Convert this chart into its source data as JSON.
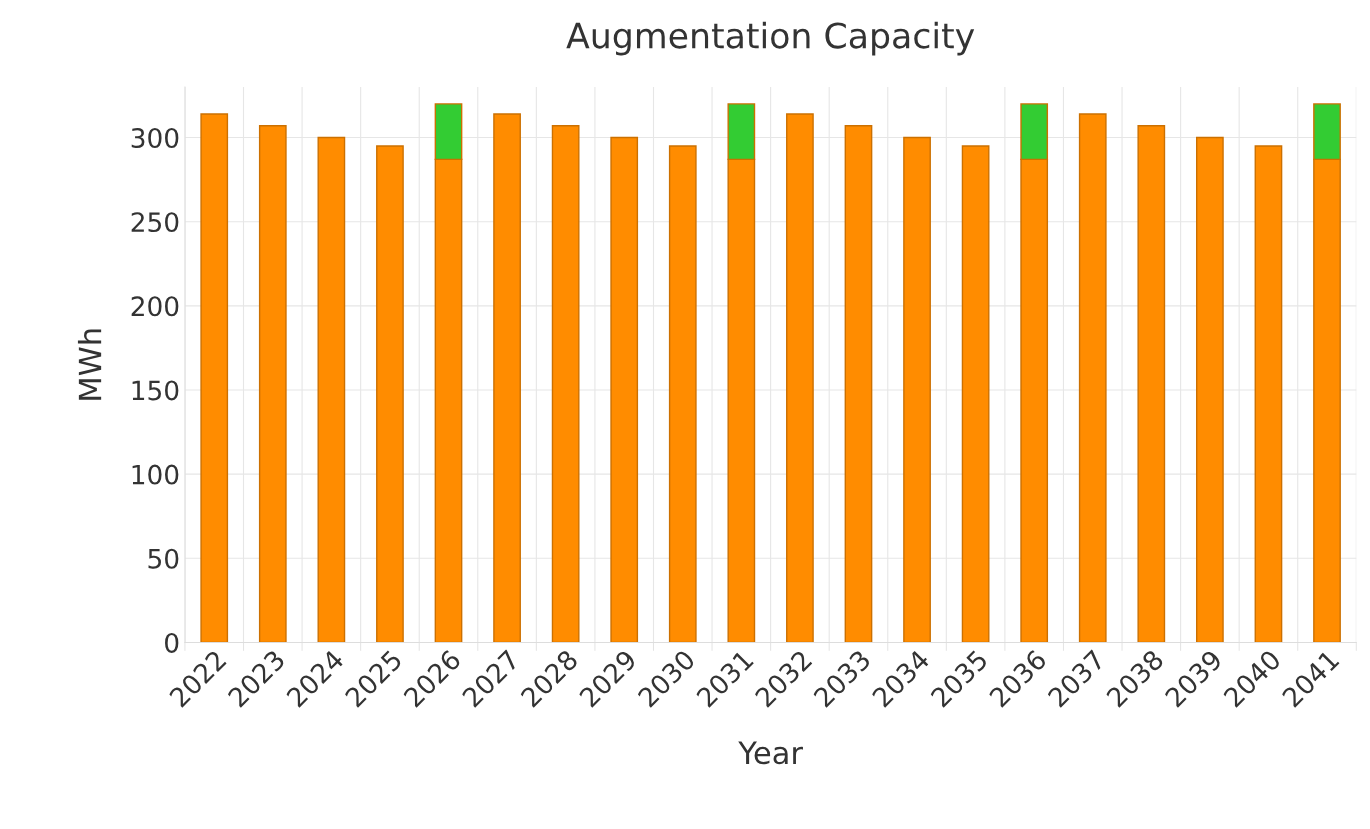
{
  "chart_data": {
    "type": "bar",
    "title": "Augmentation Capacity",
    "xlabel": "Year",
    "ylabel": "MWh",
    "categories": [
      "2022",
      "2023",
      "2024",
      "2025",
      "2026",
      "2027",
      "2028",
      "2029",
      "2030",
      "2031",
      "2032",
      "2033",
      "2034",
      "2035",
      "2036",
      "2037",
      "2038",
      "2039",
      "2040",
      "2041"
    ],
    "stacked": true,
    "series": [
      {
        "color": "#ff8c00",
        "values": [
          314,
          307,
          300,
          295,
          287,
          314,
          307,
          300,
          295,
          287,
          314,
          307,
          300,
          295,
          287,
          314,
          307,
          300,
          295,
          287
        ]
      },
      {
        "color": "#33cc33",
        "values": [
          null,
          null,
          null,
          null,
          33,
          null,
          null,
          null,
          null,
          33,
          null,
          null,
          null,
          null,
          33,
          null,
          null,
          null,
          null,
          33
        ]
      }
    ],
    "ylim": [
      0,
      330
    ],
    "yticks": [
      0,
      50,
      100,
      150,
      200,
      250,
      300
    ],
    "grid": true
  }
}
